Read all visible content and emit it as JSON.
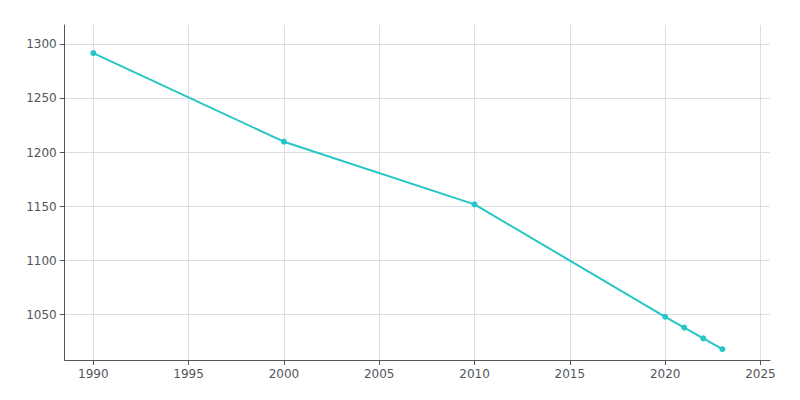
{
  "chart_data": {
    "type": "line",
    "x": [
      1990,
      2000,
      2010,
      2020,
      2021,
      2022,
      2023
    ],
    "values": [
      1292,
      1210,
      1152,
      1048,
      1038,
      1028,
      1018
    ],
    "color": "#26C6C6",
    "marker": "circle",
    "xlim": [
      1988.5,
      2025.5
    ],
    "ylim": [
      1008,
      1318
    ],
    "xticks": [
      1990,
      1995,
      2000,
      2005,
      2010,
      2015,
      2020,
      2025
    ],
    "yticks": [
      1050,
      1100,
      1150,
      1200,
      1250,
      1300
    ],
    "grid": true
  }
}
